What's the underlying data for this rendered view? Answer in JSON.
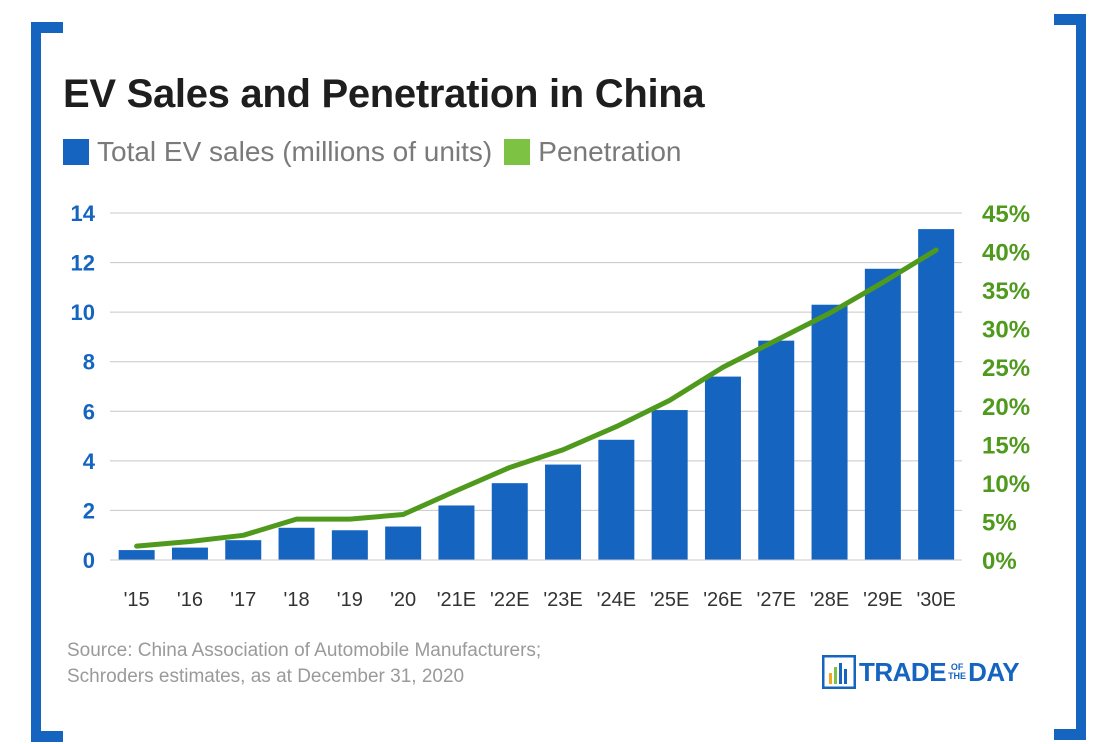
{
  "title": "EV Sales and Penetration in China",
  "legend": [
    {
      "label": "Total EV sales (millions of units)",
      "color": "#1565c0"
    },
    {
      "label": "Penetration",
      "color": "#7dc242"
    }
  ],
  "source": {
    "line1": "Source: China Association of Automobile Manufacturers;",
    "line2": "Schroders estimates, as at December 31, 2020"
  },
  "logo": {
    "left": "TRADE",
    "of": "OF",
    "the": "THE",
    "right": "DAY"
  },
  "colors": {
    "bar": "#1565c0",
    "line": "#4f9a1d",
    "left_axis": "#1565c0",
    "right_axis": "#4f9a1d",
    "grid": "#c8c8c8"
  },
  "chart_data": {
    "type": "bar",
    "title": "EV Sales and Penetration in China",
    "categories": [
      "'15",
      "'16",
      "'17",
      "'18",
      "'19",
      "'20",
      "'21E",
      "'22E",
      "'23E",
      "'24E",
      "'25E",
      "'26E",
      "'27E",
      "'28E",
      "'29E",
      "'30E"
    ],
    "series": [
      {
        "name": "Total EV sales (millions of units)",
        "type": "bar",
        "axis": "left",
        "values": [
          0.4,
          0.5,
          0.8,
          1.3,
          1.2,
          1.35,
          2.2,
          3.1,
          3.85,
          4.85,
          6.05,
          7.4,
          8.85,
          10.3,
          11.75,
          13.35
        ]
      },
      {
        "name": "Penetration",
        "type": "line",
        "axis": "right",
        "values": [
          1.8,
          2.4,
          3.2,
          5.3,
          5.3,
          5.9,
          9.0,
          12.0,
          14.3,
          17.3,
          20.7,
          25.0,
          28.5,
          32.0,
          36.0,
          40.2
        ]
      }
    ],
    "y_left": {
      "ylim": [
        0,
        14
      ],
      "ticks": [
        "0",
        "2",
        "4",
        "6",
        "8",
        "10",
        "12",
        "14"
      ]
    },
    "y_right": {
      "ylim": [
        0,
        45
      ],
      "ticks": [
        "0%",
        "5%",
        "10%",
        "15%",
        "20%",
        "25%",
        "30%",
        "35%",
        "40%",
        "45%"
      ]
    },
    "grid": true,
    "legend_position": "top-left"
  }
}
